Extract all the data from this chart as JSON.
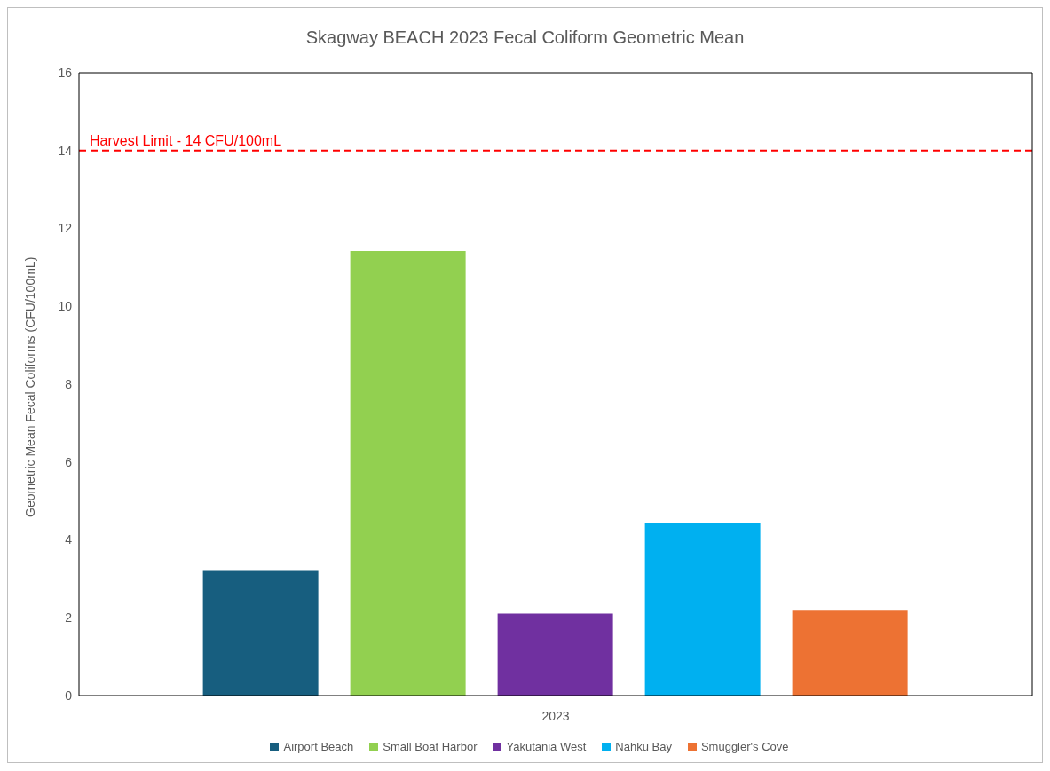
{
  "chart_data": {
    "type": "bar",
    "title": "Skagway BEACH 2023 Fecal Coliform Geometric Mean",
    "ylabel": "Geometric Mean Fecal Coliforms (CFU/100mL)",
    "categories": [
      "2023"
    ],
    "series": [
      {
        "name": "Airport Beach",
        "color": "#175e7f",
        "values": [
          3.2
        ]
      },
      {
        "name": "Small Boat Harbor",
        "color": "#92d050",
        "values": [
          11.42
        ]
      },
      {
        "name": "Yakutania West",
        "color": "#7030a0",
        "values": [
          2.11
        ]
      },
      {
        "name": "Nahku Bay",
        "color": "#00b0f0",
        "values": [
          4.43
        ]
      },
      {
        "name": "Smuggler's Cove",
        "color": "#ed7233",
        "values": [
          2.18
        ]
      }
    ],
    "ylim": [
      0,
      16
    ],
    "yticks": [
      0,
      2,
      4,
      6,
      8,
      10,
      12,
      14,
      16
    ],
    "grid": false,
    "legend": "bottom",
    "ref_lines": [
      {
        "axis": "y",
        "value": 14,
        "label": "Harvest Limit - 14 CFU/100mL",
        "color": "#ff0000",
        "line_style": "dashed"
      }
    ]
  }
}
